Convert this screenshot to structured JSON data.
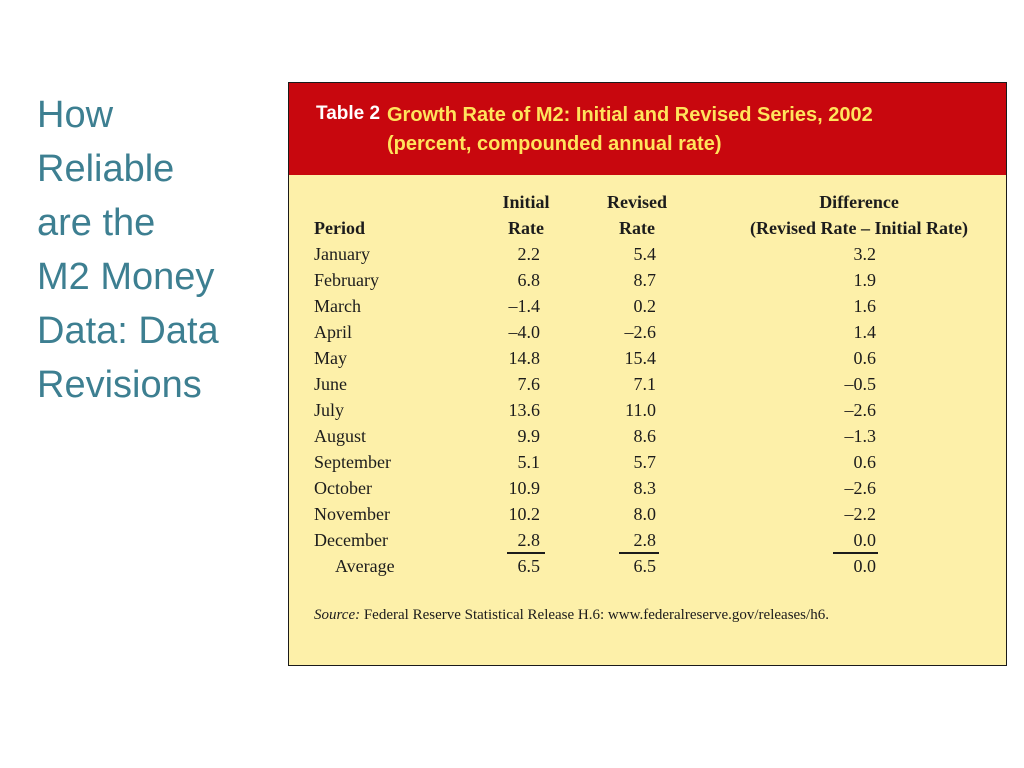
{
  "slide": {
    "title_lines": [
      "How",
      "Reliable",
      "are the",
      "M2 Money",
      "Data: Data",
      "Revisions"
    ]
  },
  "table": {
    "label": "Table 2",
    "title_line1": "Growth Rate of M2: Initial and Revised Series, 2002",
    "title_line2": "(percent, compounded annual rate)",
    "headers": {
      "period": "Period",
      "initial_top": "Initial",
      "initial_bottom": "Rate",
      "revised_top": "Revised",
      "revised_bottom": "Rate",
      "diff_top": "Difference",
      "diff_bottom": "(Revised Rate – Initial Rate)"
    },
    "rows": [
      {
        "period": "January",
        "initial": "2.2",
        "revised": "5.4",
        "difference": "3.2"
      },
      {
        "period": "February",
        "initial": "6.8",
        "revised": "8.7",
        "difference": "1.9"
      },
      {
        "period": "March",
        "initial": "–1.4",
        "revised": "0.2",
        "difference": "1.6"
      },
      {
        "period": "April",
        "initial": "–4.0",
        "revised": "–2.6",
        "difference": "1.4"
      },
      {
        "period": "May",
        "initial": "14.8",
        "revised": "15.4",
        "difference": "0.6"
      },
      {
        "period": "June",
        "initial": "7.6",
        "revised": "7.1",
        "difference": "–0.5"
      },
      {
        "period": "July",
        "initial": "13.6",
        "revised": "11.0",
        "difference": "–2.6"
      },
      {
        "period": "August",
        "initial": "9.9",
        "revised": "8.6",
        "difference": "–1.3"
      },
      {
        "period": "September",
        "initial": "5.1",
        "revised": "5.7",
        "difference": "0.6"
      },
      {
        "period": "October",
        "initial": "10.9",
        "revised": "8.3",
        "difference": "–2.6"
      },
      {
        "period": "November",
        "initial": "10.2",
        "revised": "8.0",
        "difference": "–2.2"
      },
      {
        "period": "December",
        "initial": "2.8",
        "revised": "2.8",
        "difference": "0.0"
      }
    ],
    "average": {
      "period": "Average",
      "initial": "6.5",
      "revised": "6.5",
      "difference": "0.0"
    },
    "source_label": "Source:",
    "source_text": "Federal Reserve Statistical Release H.6: www.federalreserve.gov/releases/h6."
  },
  "colors": {
    "title": "#3d7f91",
    "header_bg": "#c8070e",
    "header_title": "#ffe45c",
    "table_bg": "#fdf0a9"
  }
}
